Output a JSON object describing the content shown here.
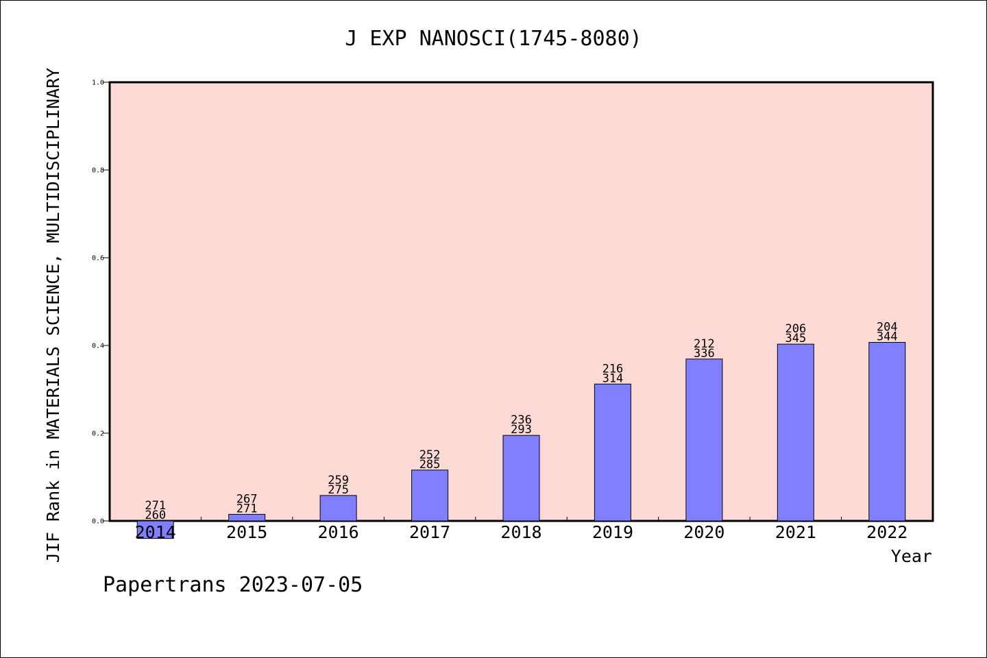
{
  "chart_data": {
    "type": "bar",
    "title": "J EXP NANOSCI(1745-8080)",
    "xlabel": "Year",
    "ylabel": "JIF Rank in MATERIALS SCIENCE, MULTIDISCIPLINARY",
    "ylim": [
      0,
      1.0
    ],
    "yticks": [
      "0.0",
      "0.2",
      "0.4",
      "0.6",
      "0.8",
      "1.0"
    ],
    "categories": [
      "2014",
      "2015",
      "2016",
      "2017",
      "2018",
      "2019",
      "2020",
      "2021",
      "2022"
    ],
    "values": [
      -0.04,
      0.015,
      0.058,
      0.116,
      0.195,
      0.312,
      0.369,
      0.403,
      0.407
    ],
    "rank_labels": [
      [
        "271",
        "260"
      ],
      [
        "267",
        "271"
      ],
      [
        "259",
        "275"
      ],
      [
        "252",
        "285"
      ],
      [
        "236",
        "293"
      ],
      [
        "216",
        "314"
      ],
      [
        "212",
        "336"
      ],
      [
        "206",
        "345"
      ],
      [
        "204",
        "344"
      ]
    ],
    "grid": false,
    "colors": {
      "plot_background": "#fddad6",
      "bar_fill": "#8080ff",
      "bar_stroke": "#000000"
    }
  },
  "footer": {
    "credit": "Papertrans 2023-07-05"
  }
}
